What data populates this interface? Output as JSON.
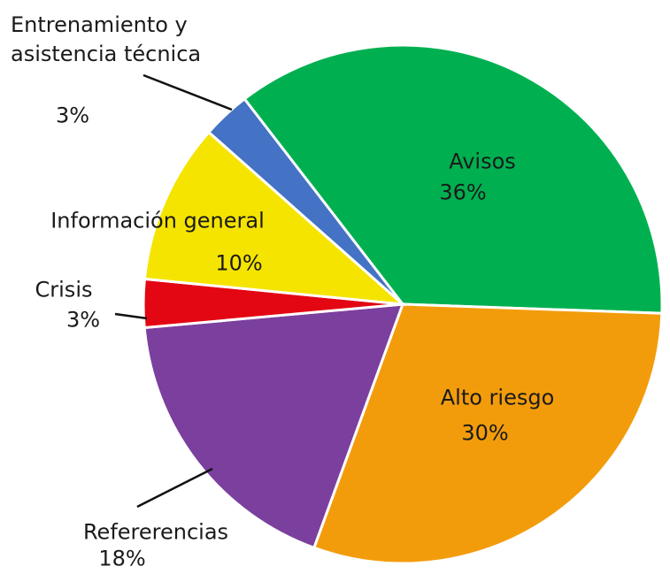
{
  "chart_data": {
    "type": "pie",
    "categories": [
      "Avisos",
      "Alto riesgo",
      "Refererencias",
      "Crisis",
      "Información general",
      "Entrenamiento y asistencia técnica"
    ],
    "values": [
      36,
      30,
      18,
      3,
      10,
      3
    ],
    "value_labels": [
      "36%",
      "30%",
      "18%",
      "3%",
      "10%",
      "3%"
    ],
    "colors": [
      "#00b050",
      "#f39c0b",
      "#7b3f9e",
      "#e30613",
      "#f5e400",
      "#4472c4"
    ]
  }
}
